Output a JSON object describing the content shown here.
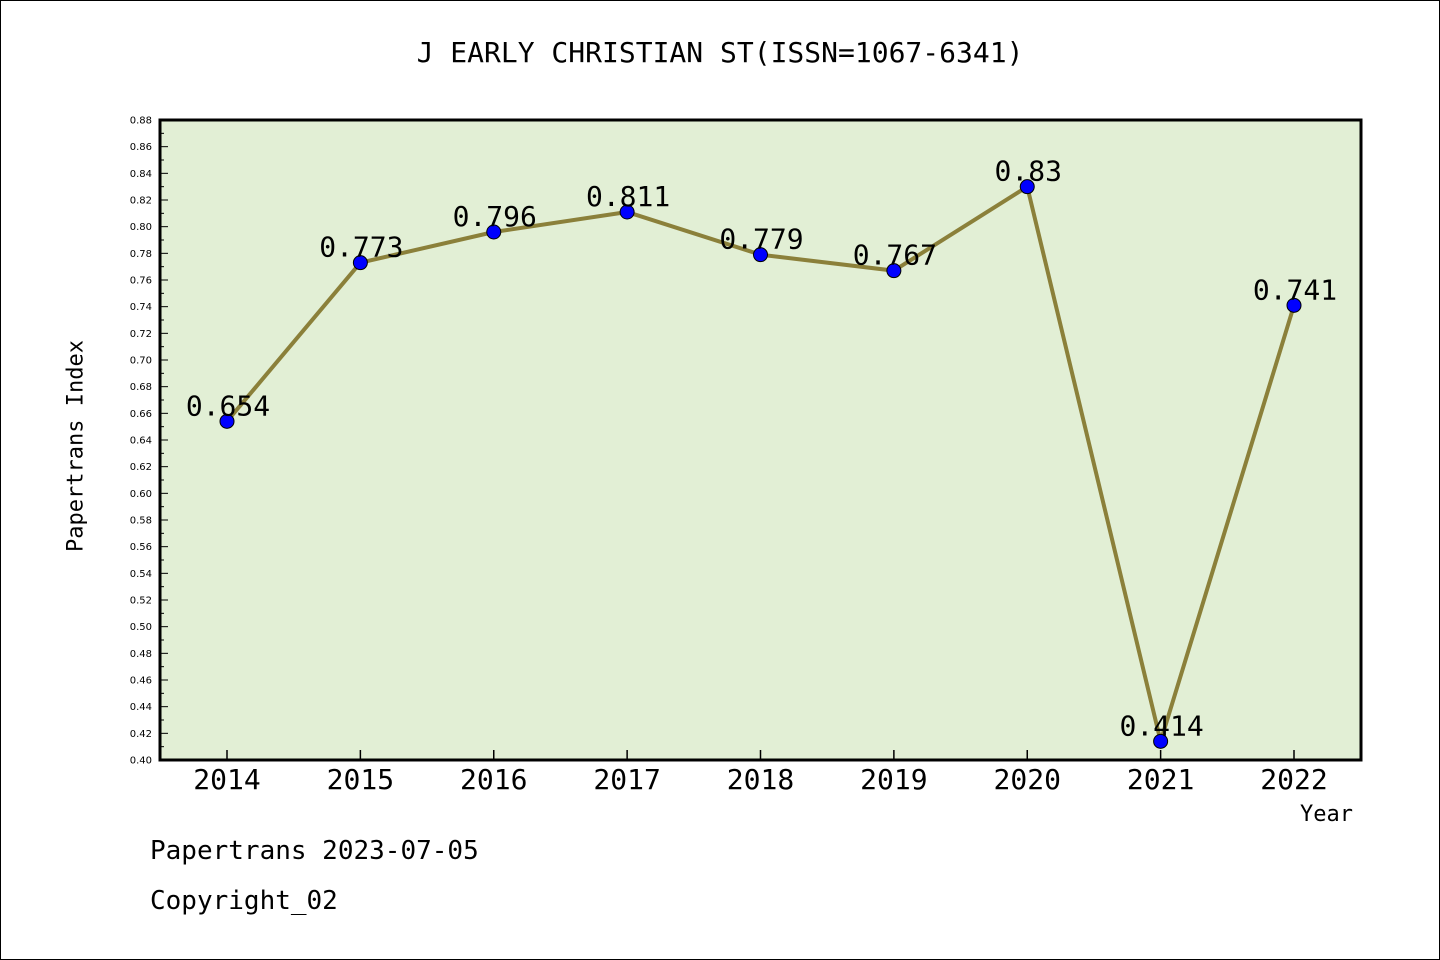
{
  "chart_data": {
    "type": "line",
    "title": "J EARLY CHRISTIAN ST(ISSN=1067-6341)",
    "xlabel": "Year",
    "ylabel": "Papertrans Index",
    "x": [
      "2014",
      "2015",
      "2016",
      "2017",
      "2018",
      "2019",
      "2020",
      "2021",
      "2022"
    ],
    "values": [
      0.654,
      0.773,
      0.796,
      0.811,
      0.779,
      0.767,
      0.83,
      0.414,
      0.741
    ],
    "data_labels": [
      "0.654",
      "0.773",
      "0.796",
      "0.811",
      "0.779",
      "0.767",
      "0.83",
      "0.414",
      "0.741"
    ],
    "ylim": [
      0.4,
      0.88
    ],
    "yticks": [
      "0.40",
      "0.42",
      "0.44",
      "0.46",
      "0.48",
      "0.50",
      "0.52",
      "0.54",
      "0.56",
      "0.58",
      "0.60",
      "0.62",
      "0.64",
      "0.66",
      "0.68",
      "0.70",
      "0.72",
      "0.74",
      "0.76",
      "0.78",
      "0.80",
      "0.82",
      "0.84",
      "0.86",
      "0.88"
    ],
    "grid": false,
    "colors": {
      "plot_background": "#e2efd5",
      "line": "#8b803a",
      "marker": "#0000ff"
    }
  },
  "footer": {
    "date_line": "Papertrans 2023-07-05",
    "copyright": "Copyright_02"
  }
}
